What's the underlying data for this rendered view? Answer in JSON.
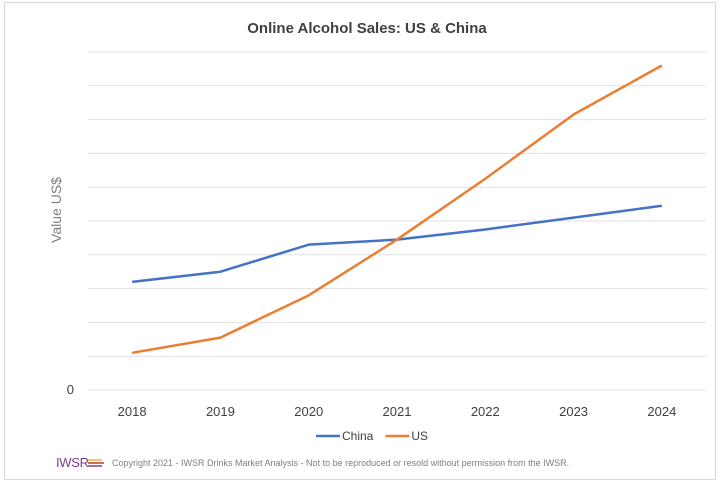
{
  "chart_data": {
    "type": "line",
    "title": "Online Alcohol Sales: US & China",
    "xlabel": "",
    "ylabel": "Value US$",
    "categories": [
      "2018",
      "2019",
      "2020",
      "2021",
      "2022",
      "2023",
      "2024"
    ],
    "ylim": [
      0,
      10
    ],
    "yticks": [
      {
        "value": 0,
        "label": "0"
      }
    ],
    "grid": true,
    "legend": "bottom",
    "series": [
      {
        "name": "China",
        "color": "#4472c4",
        "values": [
          3.2,
          3.5,
          4.3,
          4.45,
          4.75,
          5.1,
          5.45
        ]
      },
      {
        "name": "US",
        "color": "#ed7d31",
        "values": [
          1.1,
          1.55,
          2.8,
          4.45,
          6.25,
          8.15,
          9.6
        ]
      }
    ]
  },
  "footer": {
    "logo_text": "IWSR",
    "copyright": "Copyright 2021 - IWSR Drinks Market Analysis - Not to be reproduced or resold without permission from the IWSR."
  }
}
